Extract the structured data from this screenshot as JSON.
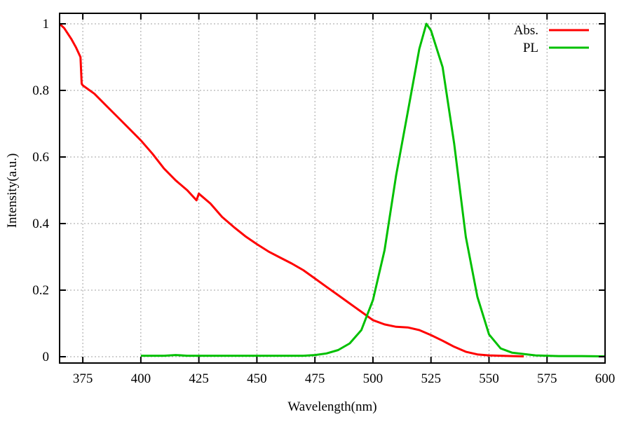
{
  "chart_data": {
    "type": "line",
    "title": "",
    "xlabel": "Wavelength(nm)",
    "ylabel": "Intensity(a.u.)",
    "xlim": [
      365,
      600
    ],
    "ylim": [
      0,
      1
    ],
    "xticks": [
      375,
      400,
      425,
      450,
      475,
      500,
      525,
      550,
      575,
      600
    ],
    "yticks": [
      0,
      0.2,
      0.4,
      0.6,
      0.8,
      1
    ],
    "ytick_labels": [
      "0",
      "0.2",
      "0.4",
      "0.6",
      "0.8",
      "1"
    ],
    "grid": true,
    "legend_position": "top-right",
    "series": [
      {
        "name": "Abs.",
        "color": "#ff0000",
        "x": [
          365,
          367,
          370,
          372,
          374,
          374.5,
          375,
          380,
          385,
          390,
          395,
          400,
          405,
          410,
          415,
          420,
          424,
          425,
          430,
          435,
          440,
          445,
          450,
          455,
          460,
          465,
          470,
          475,
          480,
          485,
          490,
          495,
          500,
          505,
          510,
          515,
          520,
          525,
          530,
          535,
          540,
          545,
          550,
          560,
          565
        ],
        "y": [
          1.0,
          0.987,
          0.955,
          0.93,
          0.9,
          0.82,
          0.815,
          0.79,
          0.755,
          0.72,
          0.685,
          0.65,
          0.61,
          0.565,
          0.53,
          0.5,
          0.47,
          0.49,
          0.46,
          0.42,
          0.39,
          0.362,
          0.338,
          0.316,
          0.298,
          0.28,
          0.26,
          0.235,
          0.21,
          0.185,
          0.16,
          0.135,
          0.11,
          0.097,
          0.09,
          0.088,
          0.08,
          0.065,
          0.048,
          0.03,
          0.015,
          0.007,
          0.004,
          0.002,
          0.001
        ]
      },
      {
        "name": "PL",
        "color": "#00c000",
        "x": [
          400,
          410,
          415,
          420,
          430,
          440,
          450,
          460,
          470,
          475,
          480,
          485,
          490,
          495,
          500,
          505,
          510,
          515,
          520,
          523,
          525,
          530,
          535,
          540,
          545,
          550,
          555,
          560,
          570,
          580,
          590,
          600
        ],
        "y": [
          0.003,
          0.003,
          0.005,
          0.003,
          0.003,
          0.003,
          0.003,
          0.003,
          0.003,
          0.005,
          0.01,
          0.02,
          0.04,
          0.08,
          0.17,
          0.32,
          0.545,
          0.735,
          0.925,
          1.0,
          0.98,
          0.87,
          0.64,
          0.36,
          0.18,
          0.067,
          0.025,
          0.012,
          0.004,
          0.002,
          0.002,
          0.001
        ]
      }
    ]
  }
}
